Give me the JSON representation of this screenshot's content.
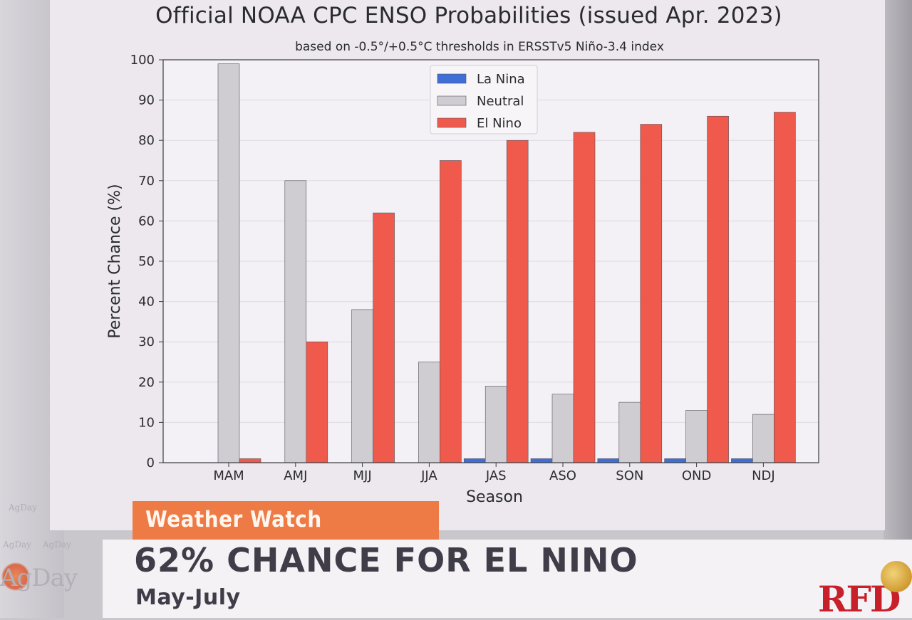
{
  "chart_data": {
    "type": "bar",
    "title": "Official NOAA CPC ENSO Probabilities (issued Apr. 2023)",
    "subtitle": "based on -0.5°/+0.5°C thresholds in ERSSTv5 Niño-3.4 index",
    "xlabel": "Season",
    "ylabel": "Percent Chance (%)",
    "ylim": [
      0,
      100
    ],
    "yticks": [
      "0",
      "10",
      "20",
      "30",
      "40",
      "50",
      "60",
      "70",
      "80",
      "90",
      "100"
    ],
    "categories": [
      "MAM",
      "AMJ",
      "MJJ",
      "JJA",
      "JAS",
      "ASO",
      "SON",
      "OND",
      "NDJ"
    ],
    "series": [
      {
        "name": "La Nina",
        "color": "#3f6fd6",
        "values": [
          0,
          0,
          0,
          0,
          1,
          1,
          1,
          1,
          1
        ]
      },
      {
        "name": "Neutral",
        "color": "#cfcdd2",
        "values": [
          99,
          70,
          38,
          25,
          19,
          17,
          15,
          13,
          12
        ]
      },
      {
        "name": "El Nino",
        "color": "#ef5a4c",
        "values": [
          1,
          30,
          62,
          75,
          80,
          82,
          84,
          86,
          87
        ]
      }
    ],
    "legend": "top-center",
    "grid": true
  },
  "broadcast": {
    "tag": "Weather Watch",
    "headline": "62% CHANCE FOR EL NINO",
    "subhead": "May-July",
    "channel_logo": "RFD",
    "show_logo": "AgDay",
    "watermark": "AgDay"
  }
}
